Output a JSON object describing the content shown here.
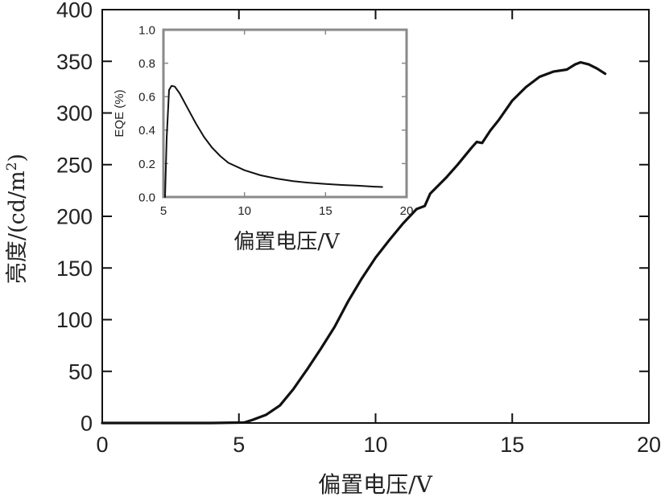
{
  "chart_data": [
    {
      "type": "line",
      "xlabel": "偏置电压/V",
      "ylabel": "亮度/(cd/m",
      "ylabel_sup": "2",
      "ylabel_end": ")",
      "xlim": [
        0,
        20
      ],
      "ylim": [
        0,
        400
      ],
      "xticks": [
        "0",
        "5",
        "10",
        "15",
        "20"
      ],
      "yticks": [
        "0",
        "50",
        "100",
        "150",
        "200",
        "250",
        "300",
        "350",
        "400"
      ],
      "grid": false,
      "series": [
        {
          "x": [
            0,
            2,
            4,
            5.2,
            5.5,
            6.0,
            6.5,
            7.0,
            7.5,
            8.0,
            8.5,
            9.0,
            9.5,
            10.0,
            10.5,
            11.0,
            11.5,
            11.8,
            12.0,
            12.3,
            12.6,
            13.0,
            13.5,
            13.7,
            13.9,
            14.2,
            14.5,
            15.0,
            15.5,
            16.0,
            16.5,
            17.0,
            17.3,
            17.5,
            17.8,
            18.1,
            18.4
          ],
          "y": [
            0,
            0,
            0,
            0.5,
            3,
            8,
            17,
            33,
            52,
            72,
            93,
            118,
            140,
            160,
            177,
            193,
            207,
            210,
            222,
            230,
            238,
            250,
            266,
            272,
            271,
            283,
            293,
            312,
            325,
            335,
            340,
            342,
            347,
            349,
            347,
            343,
            338
          ]
        }
      ]
    },
    {
      "type": "line",
      "xlabel": "偏置电压/V",
      "ylabel": "EQE (%)",
      "xlim": [
        5,
        20
      ],
      "ylim": [
        0,
        1.0
      ],
      "xticks": [
        "5",
        "10",
        "15",
        "20"
      ],
      "yticks": [
        "0.0",
        "0.2",
        "0.4",
        "0.6",
        "0.8",
        "1.0"
      ],
      "grid": false,
      "series": [
        {
          "x": [
            5.1,
            5.2,
            5.35,
            5.5,
            5.7,
            6.0,
            6.5,
            7.0,
            7.5,
            8.0,
            8.5,
            9.0,
            10.0,
            11.0,
            12.0,
            13.0,
            14.0,
            15.0,
            16.0,
            17.0,
            18.0,
            18.5
          ],
          "y": [
            0.0,
            0.35,
            0.64,
            0.665,
            0.66,
            0.62,
            0.53,
            0.44,
            0.36,
            0.295,
            0.245,
            0.205,
            0.16,
            0.13,
            0.11,
            0.095,
            0.085,
            0.078,
            0.072,
            0.068,
            0.062,
            0.06
          ]
        }
      ]
    }
  ]
}
